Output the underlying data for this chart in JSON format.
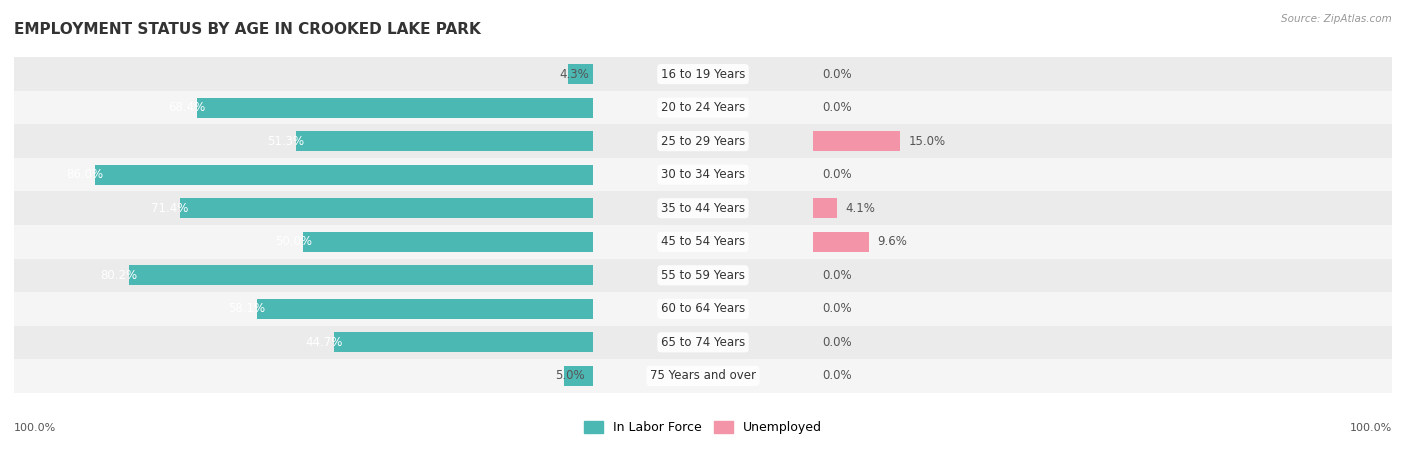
{
  "title": "EMPLOYMENT STATUS BY AGE IN CROOKED LAKE PARK",
  "source": "Source: ZipAtlas.com",
  "categories": [
    "16 to 19 Years",
    "20 to 24 Years",
    "25 to 29 Years",
    "30 to 34 Years",
    "35 to 44 Years",
    "45 to 54 Years",
    "55 to 59 Years",
    "60 to 64 Years",
    "65 to 74 Years",
    "75 Years and over"
  ],
  "in_labor_force": [
    4.3,
    68.4,
    51.3,
    86.0,
    71.4,
    50.0,
    80.2,
    58.1,
    44.7,
    5.0
  ],
  "unemployed": [
    0.0,
    0.0,
    15.0,
    0.0,
    4.1,
    9.6,
    0.0,
    0.0,
    0.0,
    0.0
  ],
  "labor_color": "#4bb8b4",
  "unemployed_color": "#f494a8",
  "row_colors": [
    "#ebebeb",
    "#f5f5f5"
  ],
  "title_fontsize": 11,
  "label_fontsize": 8.5,
  "value_fontsize": 8.5,
  "axis_label_fontsize": 8,
  "legend_fontsize": 9,
  "x_left_label": "100.0%",
  "x_right_label": "100.0%"
}
